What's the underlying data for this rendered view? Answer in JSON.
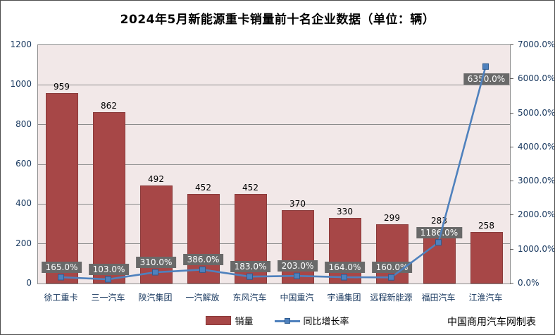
{
  "chart": {
    "title": "2024年5月新能源重卡销量前十名企业数据（单位：辆）",
    "footer": "中国商用汽车网制表"
  },
  "chart_data": {
    "type": "bar",
    "title": "2024年5月新能源重卡销量前十名企业数据（单位：辆）",
    "categories": [
      "徐工重卡",
      "三一汽车",
      "陕汽集团",
      "一汽解放",
      "东风汽车",
      "中国重汽",
      "宇通集团",
      "远程新能源",
      "福田汽车",
      "江淮汽车"
    ],
    "series": [
      {
        "name": "销量",
        "type": "bar",
        "axis": "left",
        "color": "#a74747",
        "values": [
          959,
          862,
          492,
          452,
          452,
          370,
          330,
          299,
          283,
          258
        ],
        "value_labels": [
          "959",
          "862",
          "492",
          "452",
          "452",
          "370",
          "330",
          "299",
          "283",
          "258"
        ]
      },
      {
        "name": "同比增长率",
        "type": "line",
        "axis": "right",
        "color": "#4f81bd",
        "values": [
          165.0,
          103.0,
          310.0,
          386.0,
          183.0,
          203.0,
          164.0,
          160.0,
          1186.0,
          6350.0
        ],
        "value_labels": [
          "165.0%",
          "103.0%",
          "310.0%",
          "386.0%",
          "183.0%",
          "203.0%",
          "164.0%",
          "160.0%",
          "1186.0%",
          "6350.0%"
        ]
      }
    ],
    "left_axis": {
      "min": 0,
      "max": 1200,
      "step": 200,
      "tick_labels": [
        "0",
        "200",
        "400",
        "600",
        "800",
        "1000",
        "1200"
      ]
    },
    "right_axis": {
      "min": 0,
      "max": 7000,
      "step": 1000,
      "tick_labels": [
        "0.0%",
        "1000.0%",
        "2000.0%",
        "3000.0%",
        "4000.0%",
        "5000.0%",
        "6000.0%",
        "7000.0%"
      ]
    },
    "grid": true,
    "legend_position": "bottom",
    "plot_bg": "#f2e8e8",
    "label_box_bg": "#696969"
  }
}
